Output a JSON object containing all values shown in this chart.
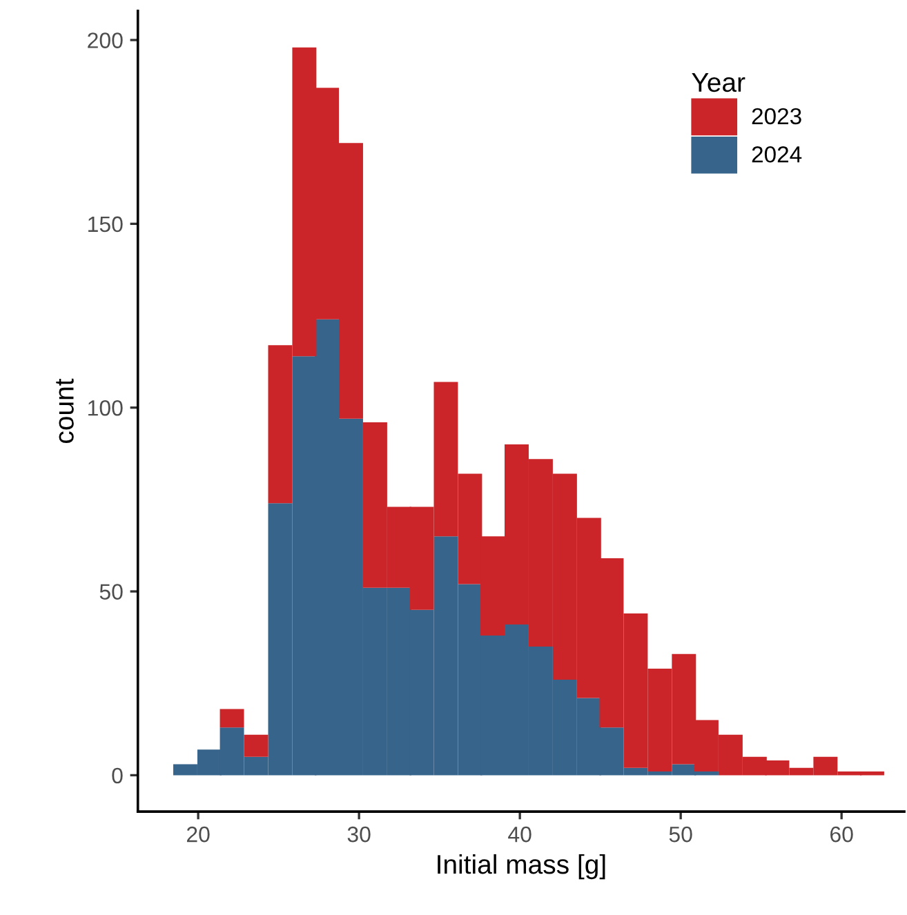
{
  "chart_data": {
    "type": "bar",
    "xlabel": "Initial mass [g]",
    "ylabel": "count",
    "legend_title": "Year",
    "legend": "top right",
    "stacked": true,
    "grid": false,
    "x": [
      19.2,
      20.7,
      22.1,
      23.6,
      25.1,
      26.6,
      28.0,
      29.5,
      31.0,
      32.5,
      33.9,
      35.4,
      36.9,
      38.3,
      39.8,
      41.3,
      42.8,
      44.3,
      45.7,
      47.2,
      48.7,
      50.2,
      51.6,
      53.1,
      54.6,
      56.0,
      57.5,
      59.0,
      60.5,
      61.9
    ],
    "series": [
      {
        "name": "2024",
        "color": "#37648b",
        "values": [
          3,
          7,
          13,
          5,
          74,
          114,
          124,
          97,
          51,
          51,
          45,
          65,
          52,
          38,
          41,
          35,
          26,
          21,
          13,
          2,
          1,
          3,
          1,
          0,
          0,
          0,
          0,
          0,
          0,
          0
        ]
      },
      {
        "name": "2023",
        "color": "#cc2529",
        "values": [
          0,
          0,
          5,
          6,
          43,
          84,
          63,
          75,
          45,
          22,
          28,
          42,
          30,
          27,
          49,
          51,
          56,
          49,
          46,
          42,
          28,
          30,
          14,
          11,
          5,
          4,
          2,
          5,
          1,
          1
        ]
      }
    ],
    "xlim": [
      16.25,
      63.9
    ],
    "ylim": [
      -9.9,
      207.9
    ],
    "xticks": [
      20,
      30,
      40,
      50,
      60
    ],
    "yticks": [
      0,
      50,
      100,
      150,
      200
    ]
  }
}
